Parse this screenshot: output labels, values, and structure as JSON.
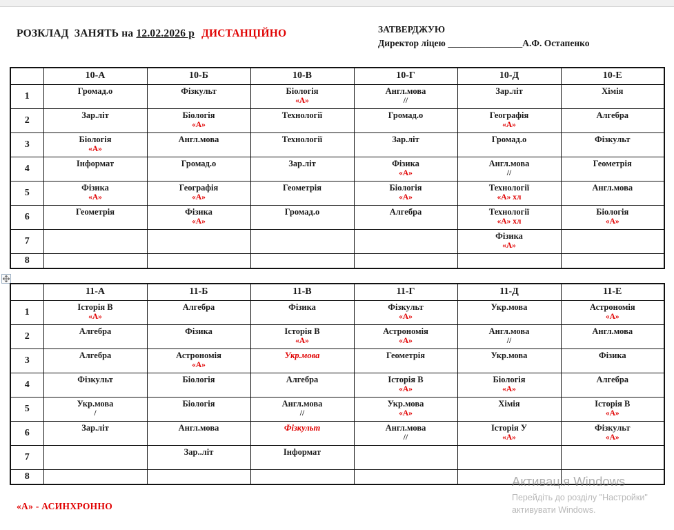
{
  "colors": {
    "accent_red": "#e00000",
    "border": "#111111",
    "text": "#1a1a1a"
  },
  "header": {
    "title_prefix": "РОЗКЛАД  ЗАНЯТЬ на ",
    "title_date": "12.02.2026 р",
    "title_mode": "ДИСТАНЦІЙНО",
    "approve_heading": "ЗАТВЕРДЖУЮ",
    "approve_role": "Директор ліцею ",
    "approve_blank": "________________",
    "approve_name": "А.Ф. Остапенко"
  },
  "icons": {
    "table_move_handle": "four-way-move-arrows"
  },
  "footnote": "«А» - АСИНХРОННО",
  "watermark": {
    "line1": "Активація Windows",
    "line2": "Перейдіть до розділу \"Настройки\"",
    "line3": "активувати Windows."
  },
  "tables": [
    {
      "name": "grade-10",
      "columns": [
        "10-А",
        "10-Б",
        "10-В",
        "10-Г",
        "10-Д",
        "10-Е"
      ],
      "rows": [
        {
          "num": "1",
          "cells": [
            {
              "s": "Громад.о"
            },
            {
              "s": "Фізкульт"
            },
            {
              "s": "Біологія",
              "n": "«А»",
              "nr": true
            },
            {
              "s": "Англ.мова",
              "n": "//"
            },
            {
              "s": "Зар.літ"
            },
            {
              "s": "Хімія"
            }
          ]
        },
        {
          "num": "2",
          "cells": [
            {
              "s": "Зар.літ"
            },
            {
              "s": "Біологія",
              "n": "«А»",
              "nr": true
            },
            {
              "s": "Технології"
            },
            {
              "s": "Громад.о"
            },
            {
              "s": "Географія",
              "n": "«А»",
              "nr": true
            },
            {
              "s": "Алгебра"
            }
          ]
        },
        {
          "num": "3",
          "cells": [
            {
              "s": "Біологія",
              "n": "«А»",
              "nr": true
            },
            {
              "s": "Англ.мова"
            },
            {
              "s": "Технології"
            },
            {
              "s": "Зар.літ"
            },
            {
              "s": "Громад.о"
            },
            {
              "s": "Фізкульт"
            }
          ]
        },
        {
          "num": "4",
          "cells": [
            {
              "s": "Інформат"
            },
            {
              "s": "Громад.о"
            },
            {
              "s": "Зар.літ"
            },
            {
              "s": "Фізика",
              "n": "«А»",
              "nr": true
            },
            {
              "s": "Англ.мова",
              "n": "//"
            },
            {
              "s": "Геометрія"
            }
          ]
        },
        {
          "num": "5",
          "cells": [
            {
              "s": "Фізика",
              "n": "«А»",
              "nr": true
            },
            {
              "s": "Географія",
              "n": "«А»",
              "nr": true
            },
            {
              "s": "Геометрія"
            },
            {
              "s": "Біологія",
              "n": "«А»",
              "nr": true
            },
            {
              "s": "Технології",
              "n": "«А» хл",
              "nr": true
            },
            {
              "s": "Англ.мова"
            }
          ]
        },
        {
          "num": "6",
          "cells": [
            {
              "s": "Геометрія"
            },
            {
              "s": "Фізика",
              "n": "«А»",
              "nr": true
            },
            {
              "s": "Громад.о"
            },
            {
              "s": "Алгебра"
            },
            {
              "s": "Технології",
              "n": "«А» хл",
              "nr": true
            },
            {
              "s": "Біологія",
              "n": "«А»",
              "nr": true
            }
          ]
        },
        {
          "num": "7",
          "cells": [
            {},
            {},
            {},
            {},
            {
              "s": "Фізика",
              "n": "«А»",
              "nr": true
            },
            {}
          ]
        },
        {
          "num": "8",
          "short": true,
          "cells": [
            {},
            {},
            {},
            {},
            {},
            {}
          ]
        }
      ]
    },
    {
      "name": "grade-11",
      "columns": [
        "11-А",
        "11-Б",
        "11-В",
        "11-Г",
        "11-Д",
        "11-Е"
      ],
      "rows": [
        {
          "num": "1",
          "cells": [
            {
              "s": "Історія В",
              "n": "«А»",
              "nr": true
            },
            {
              "s": "Алгебра"
            },
            {
              "s": "Фізика"
            },
            {
              "s": "Фізкульт",
              "n": "«А»",
              "nr": true
            },
            {
              "s": "Укр.мова"
            },
            {
              "s": "Астрономія",
              "n": "«А»",
              "nr": true
            }
          ]
        },
        {
          "num": "2",
          "cells": [
            {
              "s": "Алгебра"
            },
            {
              "s": "Фізика"
            },
            {
              "s": "Історія В",
              "n": "«А»",
              "nr": true
            },
            {
              "s": "Астрономія",
              "n": "«А»",
              "nr": true
            },
            {
              "s": "Англ.мова",
              "n": "//"
            },
            {
              "s": "Англ.мова"
            }
          ]
        },
        {
          "num": "3",
          "cells": [
            {
              "s": "Алгебра"
            },
            {
              "s": "Астрономія",
              "n": "«А»",
              "nr": true
            },
            {
              "s": "Укр.мова",
              "si": true
            },
            {
              "s": "Геометрія"
            },
            {
              "s": "Укр.мова"
            },
            {
              "s": "Фізика"
            }
          ]
        },
        {
          "num": "4",
          "cells": [
            {
              "s": "Фізкульт"
            },
            {
              "s": "Біологія"
            },
            {
              "s": "Алгебра"
            },
            {
              "s": "Історія В",
              "n": "«А»",
              "nr": true
            },
            {
              "s": "Біологія",
              "n": "«А»",
              "nr": true
            },
            {
              "s": "Алгебра"
            }
          ]
        },
        {
          "num": "5",
          "cells": [
            {
              "s": "Укр.мова",
              "n": "/"
            },
            {
              "s": "Біологія"
            },
            {
              "s": "Англ.мова",
              "n": "//"
            },
            {
              "s": "Укр.мова",
              "n": "«А»",
              "nr": true
            },
            {
              "s": "Хімія"
            },
            {
              "s": "Історія В",
              "n": "«А»",
              "nr": true
            }
          ]
        },
        {
          "num": "6",
          "cells": [
            {
              "s": "Зар.літ"
            },
            {
              "s": "Англ.мова"
            },
            {
              "s": "Фізкульт",
              "si": true
            },
            {
              "s": "Англ.мова",
              "n": "//"
            },
            {
              "s": "Історія У",
              "n": "«А»",
              "nr": true
            },
            {
              "s": "Фізкульт",
              "n": "«А»",
              "nr": true
            }
          ]
        },
        {
          "num": "7",
          "cells": [
            {},
            {
              "s": "Зар..літ"
            },
            {
              "s": "Інформат"
            },
            {},
            {},
            {}
          ]
        },
        {
          "num": "8",
          "short": true,
          "cells": [
            {},
            {},
            {},
            {},
            {},
            {}
          ]
        }
      ]
    }
  ]
}
